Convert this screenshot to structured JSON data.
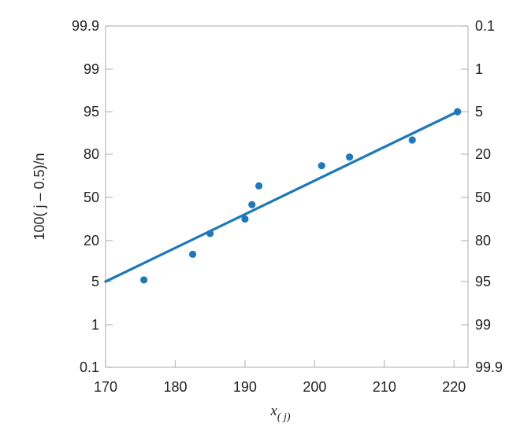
{
  "chart_data": {
    "type": "scatter",
    "title": "",
    "xlabel": "x",
    "xlabel_subscript": "( j)",
    "ylabel": "100( j – 0.5)/n",
    "xlim": [
      170,
      222
    ],
    "x_ticks": [
      170,
      180,
      190,
      200,
      210,
      220
    ],
    "y_ticks_left": [
      "99.9",
      "99",
      "95",
      "80",
      "50",
      "20",
      "5",
      "1",
      "0.1"
    ],
    "y_ticks_right": [
      "0.1",
      "1",
      "5",
      "20",
      "50",
      "80",
      "95",
      "99",
      "99.9"
    ],
    "y_scale": "normal-probability",
    "grid": false,
    "points": [
      {
        "x": 175.5,
        "y": 5.6
      },
      {
        "x": 182.5,
        "y": 15.0
      },
      {
        "x": 185,
        "y": 25.0
      },
      {
        "x": 190,
        "y": 35.0
      },
      {
        "x": 191,
        "y": 45.0
      },
      {
        "x": 192,
        "y": 58.0
      },
      {
        "x": 201,
        "y": 72.0
      },
      {
        "x": 205,
        "y": 78.0
      },
      {
        "x": 214,
        "y": 85.0
      },
      {
        "x": 220.5,
        "y": 95.0
      }
    ],
    "fit_line": {
      "x": [
        170,
        220.5
      ],
      "y": [
        5,
        95
      ]
    },
    "colors": {
      "marker": "#1f78b8",
      "line": "#1f78b8",
      "axis": "#bbbbbb",
      "text": "#222222"
    }
  }
}
